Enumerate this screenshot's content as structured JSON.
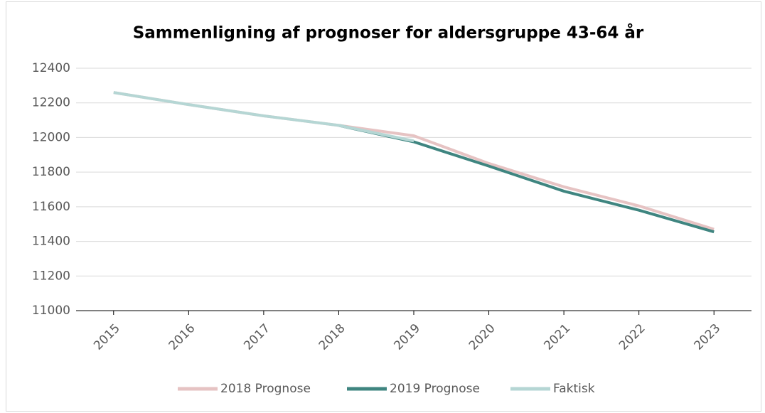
{
  "chart_data": {
    "type": "line",
    "title": "Sammenligning af prognoser for aldersgruppe 43-64 år",
    "categories": [
      "2015",
      "2016",
      "2017",
      "2018",
      "2019",
      "2020",
      "2021",
      "2022",
      "2023"
    ],
    "series": [
      {
        "name": "2018 Prognose",
        "color": "#e6c3c3",
        "values": [
          12260,
          12190,
          12125,
          12070,
          12010,
          11850,
          11715,
          11605,
          11470
        ]
      },
      {
        "name": "2019 Prognose",
        "color": "#3f8580",
        "values": [
          null,
          null,
          null,
          12070,
          11975,
          11835,
          11690,
          11580,
          11455
        ]
      },
      {
        "name": "Faktisk",
        "color": "#b5d6d4",
        "values": [
          12260,
          12190,
          12125,
          12070,
          11980,
          null,
          null,
          null,
          null
        ]
      }
    ],
    "ylim": [
      11000,
      12400
    ],
    "yticks": [
      11000,
      11200,
      11400,
      11600,
      11800,
      12000,
      12200,
      12400
    ],
    "grid": true,
    "legend": "bottom"
  }
}
